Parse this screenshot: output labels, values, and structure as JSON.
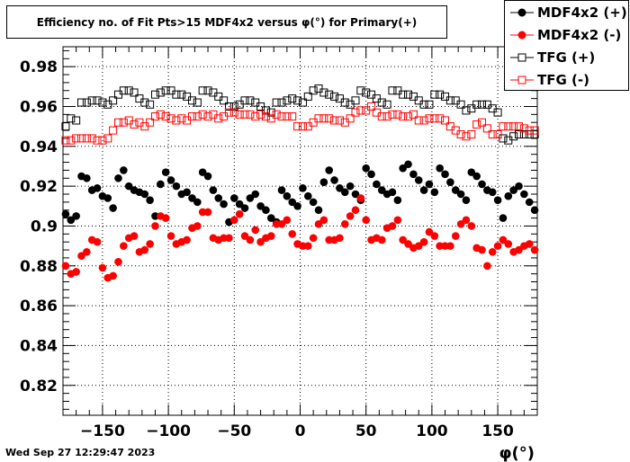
{
  "chart_data": {
    "type": "scatter",
    "title": "Efficiency no. of Fit Pts>15 MDF4x2 versus φ(°) for Primary(+)",
    "xlabel": "φ(°)",
    "ylabel": "",
    "xlim": [
      -180,
      180
    ],
    "ylim": [
      0.805,
      0.99
    ],
    "x_ticks": [
      -150,
      -100,
      -50,
      0,
      50,
      100,
      150
    ],
    "x_tick_labels": [
      "−150",
      "−100",
      "−50",
      "0",
      "50",
      "100",
      "150"
    ],
    "y_ticks": [
      0.82,
      0.84,
      0.86,
      0.88,
      0.9,
      0.92,
      0.94,
      0.96,
      0.98
    ],
    "y_tick_labels": [
      "0.82",
      "0.84",
      "0.86",
      "0.88",
      "0.9",
      "0.92",
      "0.94",
      "0.96",
      "0.98"
    ],
    "grid": true,
    "legend_position": "top-right",
    "x": [
      -178,
      -174,
      -170,
      -166,
      -162,
      -158,
      -154,
      -150,
      -146,
      -142,
      -138,
      -134,
      -130,
      -126,
      -122,
      -118,
      -114,
      -110,
      -106,
      -102,
      -98,
      -94,
      -90,
      -86,
      -82,
      -78,
      -74,
      -70,
      -66,
      -62,
      -58,
      -54,
      -50,
      -46,
      -42,
      -38,
      -34,
      -30,
      -26,
      -22,
      -18,
      -14,
      -10,
      -6,
      -2,
      2,
      6,
      10,
      14,
      18,
      22,
      26,
      30,
      34,
      38,
      42,
      46,
      50,
      54,
      58,
      62,
      66,
      70,
      74,
      78,
      82,
      86,
      90,
      94,
      98,
      102,
      106,
      110,
      114,
      118,
      122,
      126,
      130,
      134,
      138,
      142,
      146,
      150,
      154,
      158,
      162,
      166,
      170,
      174,
      178
    ],
    "series": [
      {
        "name": "MDF4x2 (+)",
        "marker": "filled-circle",
        "color": "#000000",
        "values": [
          0.906,
          0.903,
          0.905,
          0.925,
          0.924,
          0.918,
          0.919,
          0.915,
          0.914,
          0.909,
          0.924,
          0.928,
          0.92,
          0.918,
          0.917,
          0.916,
          0.913,
          0.905,
          0.921,
          0.927,
          0.923,
          0.92,
          0.916,
          0.917,
          0.914,
          0.912,
          0.927,
          0.925,
          0.918,
          0.914,
          0.911,
          0.902,
          0.914,
          0.911,
          0.909,
          0.914,
          0.916,
          0.91,
          0.908,
          0.904,
          0.902,
          0.918,
          0.915,
          0.912,
          0.91,
          0.919,
          0.915,
          0.912,
          0.908,
          0.922,
          0.928,
          0.923,
          0.919,
          0.917,
          0.92,
          0.916,
          0.913,
          0.929,
          0.926,
          0.921,
          0.918,
          0.916,
          0.917,
          0.913,
          0.929,
          0.931,
          0.926,
          0.923,
          0.918,
          0.921,
          0.917,
          0.929,
          0.926,
          0.922,
          0.918,
          0.916,
          0.913,
          0.927,
          0.925,
          0.921,
          0.918,
          0.917,
          0.913,
          0.904,
          0.915,
          0.918,
          0.92,
          0.916,
          0.912,
          0.908
        ]
      },
      {
        "name": "MDF4x2 (-)",
        "marker": "filled-circle",
        "color": "#ff0000",
        "values": [
          0.88,
          0.876,
          0.877,
          0.885,
          0.887,
          0.893,
          0.892,
          0.879,
          0.874,
          0.875,
          0.882,
          0.89,
          0.894,
          0.895,
          0.887,
          0.888,
          0.891,
          0.9,
          0.905,
          0.904,
          0.895,
          0.891,
          0.892,
          0.893,
          0.899,
          0.9,
          0.907,
          0.907,
          0.894,
          0.893,
          0.894,
          0.894,
          0.903,
          0.906,
          0.895,
          0.893,
          0.898,
          0.892,
          0.894,
          0.895,
          0.901,
          0.901,
          0.903,
          0.896,
          0.891,
          0.89,
          0.89,
          0.894,
          0.901,
          0.903,
          0.893,
          0.893,
          0.894,
          0.901,
          0.905,
          0.908,
          0.914,
          0.903,
          0.893,
          0.894,
          0.893,
          0.899,
          0.9,
          0.903,
          0.893,
          0.891,
          0.889,
          0.89,
          0.892,
          0.897,
          0.895,
          0.89,
          0.89,
          0.89,
          0.895,
          0.901,
          0.903,
          0.9,
          0.889,
          0.888,
          0.88,
          0.887,
          0.89,
          0.893,
          0.891,
          0.887,
          0.888,
          0.89,
          0.891,
          0.888
        ]
      },
      {
        "name": "TFG (+)",
        "marker": "open-square",
        "color": "#000000",
        "values": [
          0.95,
          0.954,
          0.953,
          0.962,
          0.962,
          0.963,
          0.963,
          0.962,
          0.961,
          0.963,
          0.966,
          0.968,
          0.968,
          0.967,
          0.964,
          0.962,
          0.961,
          0.966,
          0.967,
          0.968,
          0.968,
          0.966,
          0.966,
          0.965,
          0.963,
          0.962,
          0.968,
          0.968,
          0.967,
          0.965,
          0.963,
          0.96,
          0.96,
          0.961,
          0.963,
          0.963,
          0.962,
          0.96,
          0.958,
          0.957,
          0.962,
          0.962,
          0.963,
          0.964,
          0.963,
          0.962,
          0.965,
          0.968,
          0.969,
          0.967,
          0.966,
          0.965,
          0.964,
          0.962,
          0.961,
          0.963,
          0.968,
          0.967,
          0.966,
          0.964,
          0.962,
          0.961,
          0.968,
          0.968,
          0.966,
          0.966,
          0.965,
          0.963,
          0.961,
          0.961,
          0.966,
          0.966,
          0.965,
          0.963,
          0.963,
          0.961,
          0.958,
          0.959,
          0.961,
          0.961,
          0.961,
          0.959,
          0.957,
          0.944,
          0.943,
          0.945,
          0.946,
          0.946,
          0.946,
          0.946
        ]
      },
      {
        "name": "TFG (-)",
        "marker": "open-square",
        "color": "#ff0000",
        "values": [
          0.943,
          0.943,
          0.944,
          0.944,
          0.944,
          0.944,
          0.943,
          0.943,
          0.944,
          0.948,
          0.952,
          0.952,
          0.953,
          0.951,
          0.952,
          0.95,
          0.952,
          0.955,
          0.956,
          0.955,
          0.954,
          0.953,
          0.954,
          0.953,
          0.955,
          0.955,
          0.956,
          0.955,
          0.956,
          0.954,
          0.955,
          0.957,
          0.957,
          0.956,
          0.956,
          0.956,
          0.955,
          0.956,
          0.955,
          0.954,
          0.956,
          0.955,
          0.955,
          0.955,
          0.95,
          0.95,
          0.95,
          0.952,
          0.954,
          0.954,
          0.954,
          0.953,
          0.953,
          0.952,
          0.954,
          0.957,
          0.958,
          0.958,
          0.96,
          0.957,
          0.955,
          0.955,
          0.956,
          0.956,
          0.955,
          0.955,
          0.956,
          0.953,
          0.953,
          0.954,
          0.954,
          0.954,
          0.953,
          0.95,
          0.948,
          0.946,
          0.945,
          0.946,
          0.951,
          0.952,
          0.949,
          0.946,
          0.946,
          0.95,
          0.95,
          0.95,
          0.95,
          0.949,
          0.948,
          0.948
        ]
      }
    ]
  },
  "timestamp": "Wed Sep 27 12:29:47 2023"
}
